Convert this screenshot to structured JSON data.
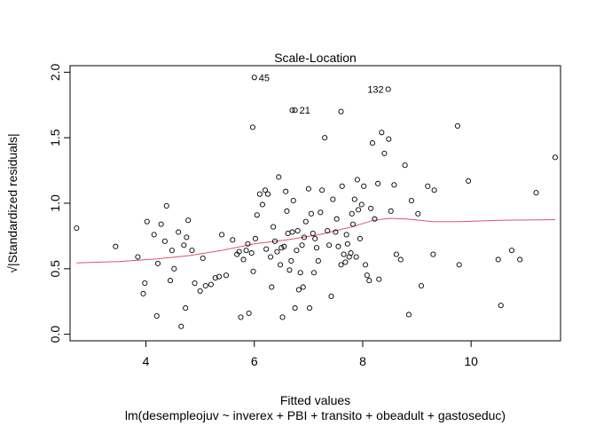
{
  "chart_data": {
    "type": "scatter",
    "title": "Scale-Location",
    "xlabel": "Fitted values",
    "subtitle": "lm(desempleojuv ~ inverex + PBI + transito + obeadult + gastoseduc)",
    "ylabel": "√|Standardized residuals|",
    "xlim": [
      2.6,
      11.65
    ],
    "ylim": [
      -0.05,
      2.05
    ],
    "x_ticks": [
      4,
      6,
      8,
      10
    ],
    "y_ticks": [
      0.0,
      0.5,
      1.0,
      1.5,
      2.0
    ],
    "x_tick_labels": [
      "4",
      "6",
      "8",
      "10"
    ],
    "y_tick_labels": [
      "0.0",
      "0.5",
      "1.0",
      "1.5",
      "2.0"
    ],
    "grid": false,
    "point_color": "#000000",
    "smooth_color": "#DF536B",
    "points": [
      [
        2.72,
        0.81
      ],
      [
        3.44,
        0.67
      ],
      [
        3.85,
        0.59
      ],
      [
        3.95,
        0.31
      ],
      [
        3.98,
        0.39
      ],
      [
        4.02,
        0.86
      ],
      [
        4.15,
        0.76
      ],
      [
        4.2,
        0.14
      ],
      [
        4.22,
        0.54
      ],
      [
        4.28,
        0.84
      ],
      [
        4.35,
        0.71
      ],
      [
        4.38,
        0.98
      ],
      [
        4.45,
        0.41
      ],
      [
        4.48,
        0.64
      ],
      [
        4.52,
        0.5
      ],
      [
        4.6,
        0.78
      ],
      [
        4.65,
        0.06
      ],
      [
        4.7,
        0.68
      ],
      [
        4.73,
        0.2
      ],
      [
        4.75,
        0.74
      ],
      [
        4.78,
        0.87
      ],
      [
        4.85,
        0.64
      ],
      [
        4.9,
        0.39
      ],
      [
        5.0,
        0.33
      ],
      [
        5.05,
        0.58
      ],
      [
        5.1,
        0.37
      ],
      [
        5.2,
        0.38
      ],
      [
        5.28,
        0.43
      ],
      [
        5.35,
        0.44
      ],
      [
        5.4,
        0.76
      ],
      [
        5.48,
        0.45
      ],
      [
        5.6,
        0.72
      ],
      [
        5.68,
        0.61
      ],
      [
        5.72,
        0.63
      ],
      [
        5.75,
        0.13
      ],
      [
        5.8,
        0.57
      ],
      [
        5.85,
        0.64
      ],
      [
        5.88,
        0.69
      ],
      [
        5.9,
        0.16
      ],
      [
        5.95,
        0.62
      ],
      [
        5.98,
        0.48
      ],
      [
        6.02,
        0.73
      ],
      [
        6.05,
        0.91
      ],
      [
        6.1,
        1.07
      ],
      [
        6.15,
        0.99
      ],
      [
        6.2,
        1.1
      ],
      [
        6.22,
        0.65
      ],
      [
        6.25,
        1.07
      ],
      [
        6.3,
        0.59
      ],
      [
        6.32,
        0.36
      ],
      [
        6.35,
        0.82
      ],
      [
        6.38,
        0.71
      ],
      [
        6.42,
        0.63
      ],
      [
        6.45,
        1.2
      ],
      [
        6.48,
        0.53
      ],
      [
        6.5,
        0.66
      ],
      [
        6.52,
        0.13
      ],
      [
        6.55,
        0.67
      ],
      [
        6.58,
        1.09
      ],
      [
        6.6,
        0.94
      ],
      [
        6.62,
        0.77
      ],
      [
        6.65,
        0.49
      ],
      [
        6.68,
        0.56
      ],
      [
        6.7,
        0.78
      ],
      [
        6.72,
        1.02
      ],
      [
        6.75,
        0.2
      ],
      [
        6.78,
        0.64
      ],
      [
        6.8,
        0.79
      ],
      [
        6.82,
        0.34
      ],
      [
        6.85,
        0.47
      ],
      [
        6.88,
        0.68
      ],
      [
        6.9,
        0.36
      ],
      [
        6.92,
        0.74
      ],
      [
        6.95,
        0.86
      ],
      [
        7.0,
        1.11
      ],
      [
        7.02,
        0.2
      ],
      [
        7.05,
        0.92
      ],
      [
        7.08,
        0.77
      ],
      [
        7.1,
        0.47
      ],
      [
        7.12,
        0.73
      ],
      [
        7.15,
        0.66
      ],
      [
        7.18,
        0.56
      ],
      [
        7.22,
        0.93
      ],
      [
        7.25,
        1.1
      ],
      [
        7.3,
        1.5
      ],
      [
        7.35,
        0.79
      ],
      [
        7.38,
        0.68
      ],
      [
        7.42,
        0.29
      ],
      [
        7.45,
        1.03
      ],
      [
        7.5,
        0.78
      ],
      [
        7.52,
        0.88
      ],
      [
        7.55,
        0.67
      ],
      [
        7.6,
        0.53
      ],
      [
        7.62,
        1.13
      ],
      [
        7.65,
        0.61
      ],
      [
        7.68,
        0.55
      ],
      [
        7.7,
        0.76
      ],
      [
        7.72,
        0.69
      ],
      [
        7.75,
        0.59
      ],
      [
        7.78,
        0.62
      ],
      [
        7.8,
        0.92
      ],
      [
        7.82,
        0.84
      ],
      [
        7.85,
        1.03
      ],
      [
        7.88,
        0.59
      ],
      [
        7.9,
        1.18
      ],
      [
        7.92,
        0.95
      ],
      [
        7.95,
        0.73
      ],
      [
        7.98,
        0.99
      ],
      [
        8.02,
        1.13
      ],
      [
        8.05,
        0.53
      ],
      [
        8.08,
        0.45
      ],
      [
        8.12,
        0.41
      ],
      [
        8.15,
        0.96
      ],
      [
        8.18,
        1.46
      ],
      [
        8.22,
        0.88
      ],
      [
        8.28,
        1.15
      ],
      [
        8.3,
        0.42
      ],
      [
        8.35,
        1.54
      ],
      [
        8.4,
        1.38
      ],
      [
        8.48,
        1.49
      ],
      [
        8.52,
        0.94
      ],
      [
        8.58,
        1.14
      ],
      [
        8.62,
        0.61
      ],
      [
        8.7,
        0.57
      ],
      [
        8.78,
        1.29
      ],
      [
        8.85,
        0.15
      ],
      [
        8.9,
        1.02
      ],
      [
        9.02,
        0.92
      ],
      [
        9.08,
        0.37
      ],
      [
        9.2,
        1.13
      ],
      [
        9.32,
        1.1
      ],
      [
        9.3,
        0.61
      ],
      [
        9.75,
        1.59
      ],
      [
        9.78,
        0.53
      ],
      [
        9.95,
        1.17
      ],
      [
        10.5,
        0.57
      ],
      [
        10.55,
        0.22
      ],
      [
        10.75,
        0.64
      ],
      [
        10.9,
        0.57
      ],
      [
        11.2,
        1.08
      ],
      [
        11.55,
        1.35
      ],
      [
        6.7,
        1.71
      ],
      [
        7.6,
        1.7
      ],
      [
        5.97,
        1.58
      ]
    ],
    "labeled_points": [
      {
        "label": "45",
        "x": 6.0,
        "y": 1.96
      },
      {
        "label": "21",
        "x": 6.75,
        "y": 1.71
      },
      {
        "label": "132",
        "x": 8.47,
        "y": 1.87
      }
    ],
    "smooth_line": [
      [
        2.72,
        0.545
      ],
      [
        3.5,
        0.555
      ],
      [
        4.2,
        0.575
      ],
      [
        4.8,
        0.6
      ],
      [
        5.4,
        0.64
      ],
      [
        6.0,
        0.69
      ],
      [
        6.6,
        0.72
      ],
      [
        7.2,
        0.76
      ],
      [
        7.8,
        0.82
      ],
      [
        8.2,
        0.87
      ],
      [
        8.5,
        0.885
      ],
      [
        8.8,
        0.88
      ],
      [
        9.3,
        0.86
      ],
      [
        9.8,
        0.86
      ],
      [
        10.5,
        0.87
      ],
      [
        11.55,
        0.875
      ]
    ]
  }
}
